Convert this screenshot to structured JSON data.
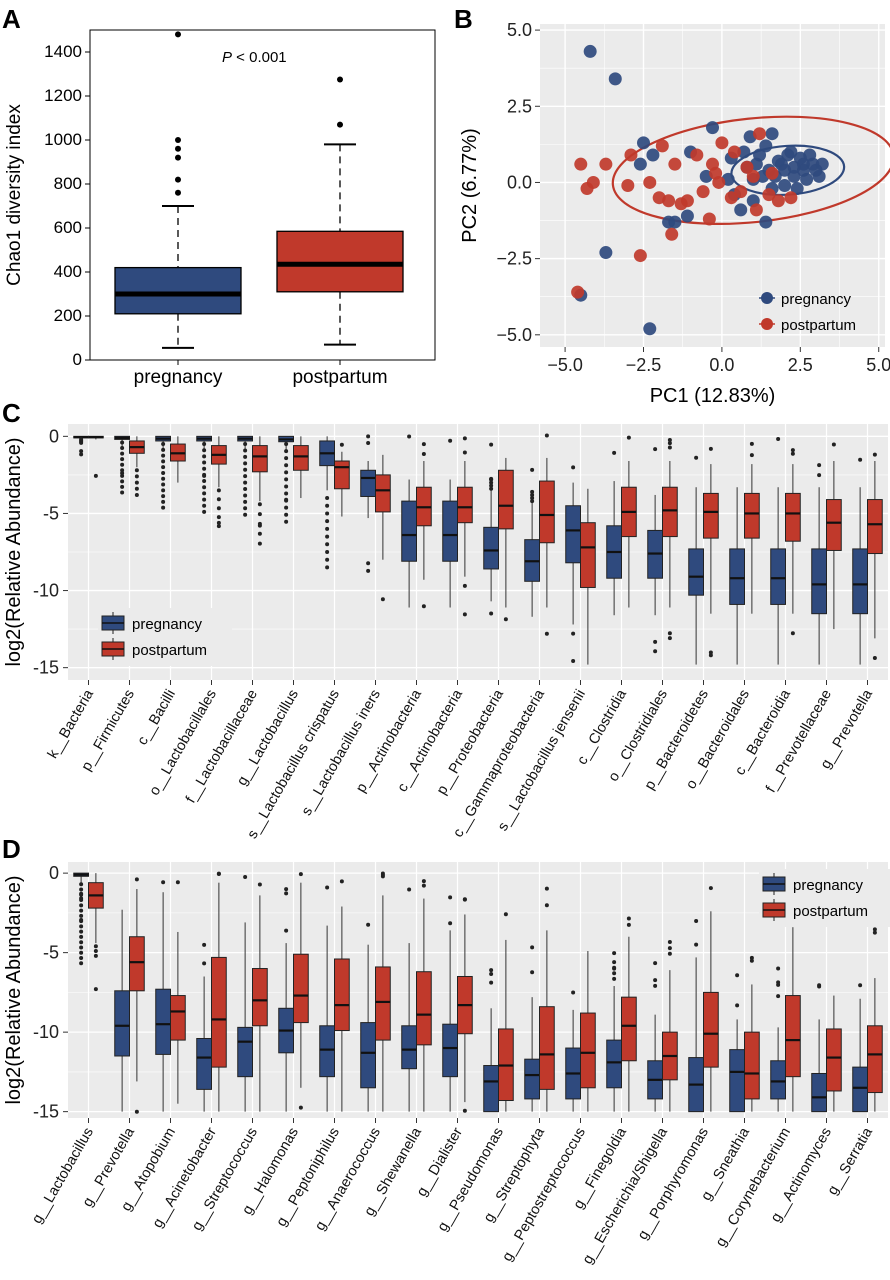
{
  "colors": {
    "pregnancy": "#2f4a7e",
    "postpartum": "#c0392b",
    "panel_bg": "#ebebeb"
  },
  "panels": {
    "A": "A",
    "B": "B",
    "C": "C",
    "D": "D"
  },
  "chart_data": [
    {
      "panel": "A",
      "type": "box",
      "ylabel": "Chao1 diversity index",
      "annotation": {
        "italic": "P",
        "text": " < 0.001"
      },
      "ylim": [
        0,
        1500
      ],
      "yticks": [
        0,
        200,
        400,
        600,
        800,
        1000,
        1200,
        1400
      ],
      "categories": [
        "pregnancy",
        "postpartum"
      ],
      "boxes": [
        {
          "q1": 210,
          "median": 300,
          "q3": 420,
          "lower": 55,
          "upper": 700,
          "outliers": [
            760,
            820,
            920,
            960,
            1000,
            1480
          ]
        },
        {
          "q1": 310,
          "median": 435,
          "q3": 585,
          "lower": 70,
          "upper": 980,
          "outliers": [
            1070,
            1275
          ]
        }
      ]
    },
    {
      "panel": "B",
      "type": "scatter",
      "xlabel": "PC1 (12.83%)",
      "ylabel": "PC2 (6.77%)",
      "xlim": [
        -5.8,
        5.2
      ],
      "ylim": [
        -5.4,
        5.2
      ],
      "xticks": [
        -5.0,
        -2.5,
        0.0,
        2.5,
        5.0
      ],
      "yticks": [
        -5.0,
        -2.5,
        0.0,
        2.5,
        5.0
      ],
      "tick_labels_x": [
        "−5.0",
        "−2.5",
        "0.0",
        "2.5",
        "5.0"
      ],
      "tick_labels_y": [
        "−5.0",
        "−2.5",
        "0.0",
        "2.5",
        "5.0"
      ],
      "legend": [
        "pregnancy",
        "postpartum"
      ],
      "series": [
        {
          "name": "pregnancy",
          "points": [
            [
              -4.2,
              4.3
            ],
            [
              -3.4,
              3.4
            ],
            [
              -4.5,
              -3.7
            ],
            [
              -3.7,
              -2.3
            ],
            [
              -2.3,
              -4.8
            ],
            [
              -1.7,
              -1.3
            ],
            [
              -2.2,
              0.9
            ],
            [
              -0.3,
              1.8
            ],
            [
              -1.0,
              1.0
            ],
            [
              -2.5,
              1.3
            ],
            [
              -0.5,
              0.2
            ],
            [
              0.4,
              -0.4
            ],
            [
              0.8,
              0.5
            ],
            [
              1.2,
              0.9
            ],
            [
              0.3,
              0.8
            ],
            [
              0.9,
              1.5
            ],
            [
              1.6,
              1.6
            ],
            [
              1.0,
              -0.6
            ],
            [
              1.6,
              -0.2
            ],
            [
              2.0,
              0.4
            ],
            [
              2.3,
              0.2
            ],
            [
              2.6,
              0.6
            ],
            [
              2.2,
              1.0
            ],
            [
              1.8,
              0.7
            ],
            [
              2.4,
              -0.2
            ],
            [
              1.3,
              0.2
            ],
            [
              1.4,
              -1.3
            ],
            [
              0.6,
              -0.9
            ],
            [
              -1.5,
              -1.3
            ],
            [
              -2.6,
              0.6
            ],
            [
              -1.1,
              -1.1
            ],
            [
              1.9,
              0.6
            ],
            [
              2.1,
              0.9
            ],
            [
              2.7,
              0.1
            ],
            [
              3.0,
              0.4
            ],
            [
              2.8,
              0.9
            ],
            [
              2.5,
              0.8
            ],
            [
              1.7,
              0.2
            ],
            [
              1.0,
              0.1
            ],
            [
              0.2,
              0.1
            ],
            [
              2.9,
              0.6
            ],
            [
              3.2,
              0.6
            ],
            [
              1.4,
              1.2
            ],
            [
              0.7,
              1.0
            ],
            [
              2.3,
              0.5
            ],
            [
              1.1,
              0.6
            ],
            [
              1.5,
              0.4
            ],
            [
              2.6,
              0.4
            ],
            [
              3.1,
              0.2
            ],
            [
              2.0,
              -0.1
            ]
          ]
        },
        {
          "name": "postpartum",
          "points": [
            [
              -4.6,
              -3.6
            ],
            [
              -2.6,
              -2.4
            ],
            [
              -1.6,
              -1.7
            ],
            [
              -4.1,
              0.0
            ],
            [
              -4.5,
              0.6
            ],
            [
              -3.0,
              -0.1
            ],
            [
              -2.9,
              0.9
            ],
            [
              -3.7,
              0.6
            ],
            [
              -2.3,
              0.0
            ],
            [
              -1.7,
              -0.6
            ],
            [
              -1.1,
              -0.6
            ],
            [
              -0.6,
              -0.3
            ],
            [
              -0.8,
              0.9
            ],
            [
              -0.2,
              0.3
            ],
            [
              0.3,
              -0.5
            ],
            [
              1.1,
              -0.9
            ],
            [
              0.4,
              1.0
            ],
            [
              1.6,
              0.3
            ],
            [
              -1.5,
              0.6
            ],
            [
              0.0,
              1.3
            ],
            [
              -0.4,
              -1.2
            ],
            [
              0.8,
              0.5
            ],
            [
              1.8,
              -0.6
            ],
            [
              1.2,
              1.6
            ],
            [
              -0.1,
              0.0
            ],
            [
              -1.9,
              1.2
            ],
            [
              -4.3,
              -0.2
            ],
            [
              2.2,
              -0.5
            ],
            [
              -1.3,
              -0.7
            ],
            [
              0.6,
              -0.3
            ],
            [
              1.0,
              0.2
            ],
            [
              -0.3,
              0.6
            ],
            [
              -2.0,
              -0.5
            ],
            [
              1.5,
              -0.4
            ]
          ]
        }
      ],
      "ellipses": [
        {
          "series": "pregnancy",
          "cx": 2.1,
          "cy": 0.4,
          "rx": 1.8,
          "ry": 0.8,
          "angle": 4
        },
        {
          "series": "postpartum",
          "cx": 1.0,
          "cy": 0.4,
          "rx": 4.5,
          "ry": 1.7,
          "angle": 6
        }
      ]
    },
    {
      "panel": "C",
      "type": "box",
      "ylabel": "log2(Relative Abundance)",
      "ylim": [
        -15.8,
        0.8
      ],
      "yticks": [
        0,
        -5,
        -10,
        -15
      ],
      "legend": [
        "pregnancy",
        "postpartum"
      ],
      "categories": [
        "k__Bacteria",
        "p__Firmicutes",
        "c__Bacilli",
        "o__Lactobacillales",
        "f__Lactobacillaceae",
        "g__Lactobacillus",
        "s__Lactobacillus crispatus",
        "s__Lactobacillus iners",
        "p__Actinobacteria",
        "c__Actinobacteria",
        "p__Proteobacteria",
        "c__Gammaproteobacteria",
        "s__Lactobacillus jensenii",
        "c__Clostridia",
        "o__Clostridiales",
        "p__Bacteroidetes",
        "o__Bacteroidales",
        "c__Bacteroidia",
        "f__Prevotellaceae",
        "g__Prevotella"
      ],
      "pregnancy": [
        [
          -0.1,
          -0.05,
          0,
          -0.25,
          0
        ],
        [
          -0.2,
          -0.1,
          0,
          -0.7,
          0
        ],
        [
          -0.3,
          -0.15,
          0,
          -0.8,
          0
        ],
        [
          -0.3,
          -0.15,
          0,
          -0.8,
          0
        ],
        [
          -0.3,
          -0.15,
          0,
          -0.8,
          0
        ],
        [
          -0.35,
          -0.2,
          0,
          -0.9,
          0
        ],
        [
          -1.9,
          -1.1,
          -0.3,
          -3.5,
          0
        ],
        [
          -3.9,
          -2.7,
          -2.2,
          -5.3,
          -1.6
        ],
        [
          -8.1,
          -6.4,
          -4.2,
          -11.1,
          -2.8
        ],
        [
          -8.1,
          -6.4,
          -4.2,
          -11.1,
          -2.8
        ],
        [
          -8.6,
          -7.4,
          -5.9,
          -10.7,
          -3.2
        ],
        [
          -9.4,
          -8.1,
          -6.7,
          -11.7,
          -4.3
        ],
        [
          -8.2,
          -6.1,
          -4.5,
          -12.2,
          -3.0
        ],
        [
          -9.2,
          -7.5,
          -5.8,
          -11.6,
          -2.9
        ],
        [
          -9.2,
          -7.6,
          -6.1,
          -11.6,
          -3.8
        ],
        [
          -10.3,
          -9.1,
          -7.3,
          -14.8,
          -3.3
        ],
        [
          -10.9,
          -9.2,
          -7.3,
          -14.8,
          -3.3
        ],
        [
          -10.9,
          -9.2,
          -7.3,
          -14.8,
          -3.3
        ],
        [
          -11.5,
          -9.6,
          -7.3,
          -14.8,
          -3.3
        ],
        [
          -11.5,
          -9.6,
          -7.3,
          -14.8,
          -3.3
        ]
      ],
      "postpartum": [
        [
          -0.1,
          -0.05,
          0,
          -0.2,
          0
        ],
        [
          -1.1,
          -0.7,
          -0.3,
          -2.0,
          0
        ],
        [
          -1.6,
          -1.1,
          -0.5,
          -3.0,
          0
        ],
        [
          -1.8,
          -1.2,
          -0.6,
          -3.3,
          0
        ],
        [
          -2.3,
          -1.3,
          -0.6,
          -4.2,
          0
        ],
        [
          -2.2,
          -1.3,
          -0.6,
          -4.0,
          0
        ],
        [
          -3.4,
          -2.0,
          -1.6,
          -5.2,
          -1.0
        ],
        [
          -4.9,
          -3.5,
          -2.5,
          -8.0,
          -1.2
        ],
        [
          -5.8,
          -4.6,
          -3.3,
          -9.3,
          -1.6
        ],
        [
          -5.6,
          -4.6,
          -3.3,
          -9.1,
          -1.6
        ],
        [
          -6.0,
          -4.5,
          -2.2,
          -11.1,
          -1.4
        ],
        [
          -6.9,
          -5.1,
          -2.9,
          -11.1,
          -1.4
        ],
        [
          -9.8,
          -7.2,
          -5.6,
          -14.8,
          -3.4
        ],
        [
          -6.5,
          -4.9,
          -3.3,
          -11.1,
          -1.6
        ],
        [
          -6.5,
          -4.8,
          -3.3,
          -11.1,
          -1.6
        ],
        [
          -6.6,
          -4.9,
          -3.7,
          -11.5,
          -1.8
        ],
        [
          -6.6,
          -5.0,
          -3.7,
          -11.5,
          -1.8
        ],
        [
          -6.8,
          -5.0,
          -3.7,
          -11.5,
          -1.8
        ],
        [
          -7.4,
          -5.6,
          -4.1,
          -12.5,
          -1.6
        ],
        [
          -7.6,
          -5.7,
          -4.1,
          -13.1,
          -1.6
        ]
      ]
    },
    {
      "panel": "D",
      "type": "box",
      "ylabel": "log2(Relative Abundance)",
      "ylim": [
        -15.4,
        0.7
      ],
      "yticks": [
        0,
        -5,
        -10,
        -15
      ],
      "legend": [
        "pregnancy",
        "postpartum"
      ],
      "categories": [
        "g__Lactobacillus",
        "g__Prevotella",
        "g__Atopobium",
        "g__Acinetobacter",
        "g__Streptococcus",
        "g__Halomonas",
        "g__Peptoniphilus",
        "g__Anaerococcus",
        "g__Shewanella",
        "g__Dialister",
        "g__Pseudomonas",
        "g__Streptophyta",
        "g__Peptostreptococcus",
        "g__Finegoldia",
        "g__Escherichia/Shigella",
        "g__Porphyromonas",
        "g__Sneathia",
        "g__Corynebacterium",
        "g__Actinomyces",
        "g__Serratia"
      ],
      "pregnancy": [
        [
          -0.2,
          -0.1,
          0,
          -0.6,
          0
        ],
        [
          -11.5,
          -9.6,
          -7.4,
          -15.0,
          -2.3
        ],
        [
          -11.4,
          -9.5,
          -7.3,
          -15.0,
          -1.2
        ],
        [
          -13.6,
          -11.6,
          -10.4,
          -15.0,
          -6.5
        ],
        [
          -12.8,
          -10.6,
          -9.7,
          -15.0,
          -3.1
        ],
        [
          -11.3,
          -9.9,
          -8.5,
          -15.0,
          -4.4
        ],
        [
          -12.8,
          -11.1,
          -9.6,
          -15.0,
          -3.3
        ],
        [
          -13.5,
          -11.3,
          -9.4,
          -15.0,
          -4.5
        ],
        [
          -12.3,
          -11.1,
          -9.6,
          -15.0,
          -4.4
        ],
        [
          -12.8,
          -11.0,
          -9.5,
          -15.0,
          -3.6
        ],
        [
          -15.0,
          -13.1,
          -12.1,
          -15.0,
          -8.5
        ],
        [
          -14.2,
          -12.7,
          -11.7,
          -15.0,
          -7.8
        ],
        [
          -14.2,
          -12.6,
          -11.0,
          -15.0,
          -8.6
        ],
        [
          -13.5,
          -11.9,
          -10.5,
          -15.0,
          -7.1
        ],
        [
          -14.2,
          -13.0,
          -11.8,
          -15.0,
          -8.9
        ],
        [
          -15.0,
          -13.3,
          -11.6,
          -15.0,
          -5.3
        ],
        [
          -15.0,
          -12.5,
          -11.1,
          -15.0,
          -9.2
        ],
        [
          -14.2,
          -13.1,
          -11.8,
          -15.0,
          -9.7
        ],
        [
          -15.0,
          -14.1,
          -12.6,
          -15.0,
          -9.2
        ],
        [
          -15.0,
          -13.5,
          -12.2,
          -15.0,
          -7.9
        ]
      ],
      "postpartum": [
        [
          -2.2,
          -1.4,
          -0.6,
          -4.4,
          0
        ],
        [
          -7.4,
          -5.6,
          -4.0,
          -13.1,
          -1.0
        ],
        [
          -10.5,
          -8.7,
          -7.7,
          -14.5,
          -3.7
        ],
        [
          -12.2,
          -9.2,
          -5.3,
          -15.0,
          -0.6
        ],
        [
          -9.6,
          -8.0,
          -6.0,
          -15.0,
          -1.4
        ],
        [
          -9.4,
          -7.7,
          -5.1,
          -13.5,
          -0.6
        ],
        [
          -9.9,
          -8.3,
          -5.4,
          -15.0,
          -2.1
        ],
        [
          -10.5,
          -8.1,
          -5.9,
          -15.0,
          -1.4
        ],
        [
          -10.8,
          -8.9,
          -6.2,
          -15.0,
          -1.6
        ],
        [
          -10.1,
          -8.3,
          -6.5,
          -14.4,
          -2.6
        ],
        [
          -14.3,
          -12.1,
          -9.8,
          -15.0,
          -4.2
        ],
        [
          -13.6,
          -11.4,
          -8.4,
          -15.0,
          -3.6
        ],
        [
          -13.5,
          -11.3,
          -8.8,
          -15.0,
          -4.9
        ],
        [
          -11.8,
          -9.6,
          -7.8,
          -15.0,
          -4.0
        ],
        [
          -13.0,
          -11.5,
          -10.0,
          -15.0,
          -6.1
        ],
        [
          -12.2,
          -10.1,
          -7.5,
          -15.0,
          -2.4
        ],
        [
          -14.2,
          -12.6,
          -10.0,
          -15.0,
          -7.0
        ],
        [
          -12.8,
          -10.5,
          -7.7,
          -15.0,
          -3.4
        ],
        [
          -13.7,
          -11.6,
          -9.8,
          -15.0,
          -7.7
        ],
        [
          -13.8,
          -11.4,
          -9.6,
          -15.0,
          -6.6
        ]
      ]
    }
  ]
}
